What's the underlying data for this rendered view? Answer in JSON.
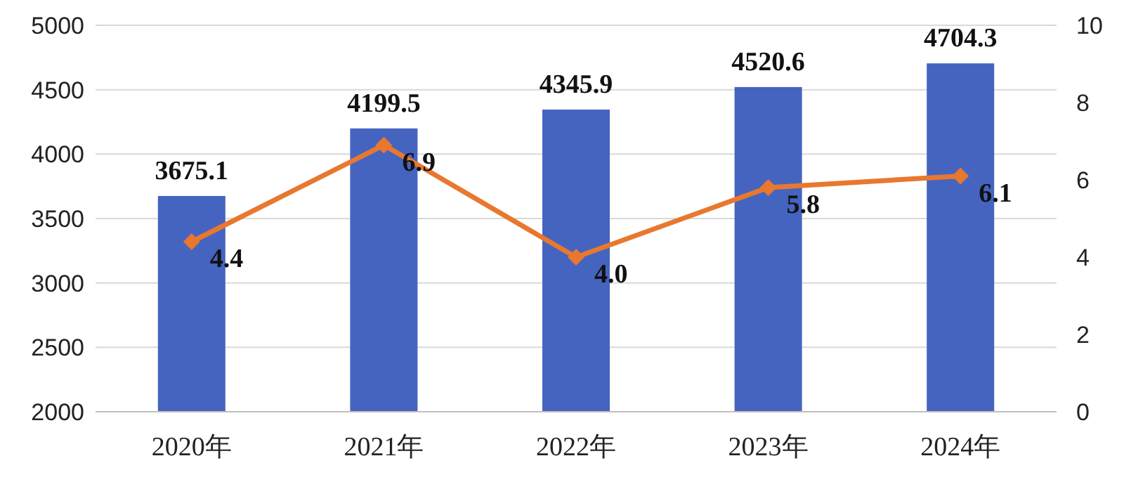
{
  "chart_data": {
    "type": "bar",
    "categories": [
      "2020年",
      "2021年",
      "2022年",
      "2023年",
      "2024年"
    ],
    "series": [
      {
        "color": "#4564c0",
        "values": [
          3675.1,
          4199.5,
          4345.9,
          4520.6,
          4704.3
        ],
        "value_labels": [
          "3675.1",
          "4199.5",
          "4345.9",
          "4520.6",
          "4704.3"
        ]
      },
      {
        "type": "line",
        "axis": "y2",
        "color": "#e8782f",
        "marker": "diamond",
        "values": [
          4.4,
          6.9,
          4.0,
          5.8,
          6.1
        ],
        "value_labels": [
          "4.4",
          "6.9",
          "4.0",
          "5.8",
          "6.1"
        ]
      }
    ],
    "ylim": [
      2000,
      5000
    ],
    "yticks": [
      2000,
      2500,
      3000,
      3500,
      4000,
      4500,
      5000
    ],
    "y2lim": [
      0,
      10
    ],
    "y2ticks": [
      0,
      2,
      4,
      6,
      8,
      10
    ],
    "grid": "y"
  }
}
